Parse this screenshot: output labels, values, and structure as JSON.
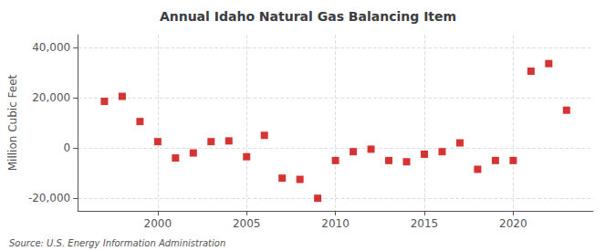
{
  "chart_data": {
    "type": "scatter",
    "title": "Annual Idaho Natural Gas Balancing Item",
    "ylabel": "Million Cubic Feet",
    "annotations": [
      "Source: U.S. Energy Information Administration"
    ],
    "x": [
      1997,
      1998,
      1999,
      2000,
      2001,
      2002,
      2003,
      2004,
      2005,
      2006,
      2007,
      2008,
      2009,
      2010,
      2011,
      2012,
      2013,
      2014,
      2015,
      2016,
      2017,
      2018,
      2019,
      2020,
      2021,
      2022,
      2023
    ],
    "values": [
      18500,
      20500,
      10500,
      2500,
      -4000,
      -2000,
      2500,
      2800,
      -3500,
      5000,
      -12000,
      -12500,
      -20000,
      -5000,
      -1500,
      -500,
      -5000,
      -5500,
      -2500,
      -1500,
      2000,
      -8500,
      -5000,
      -5000,
      30500,
      33500,
      15000
    ],
    "color": "#cc0000",
    "marker": "square",
    "xlim": [
      1995.5,
      2024.5
    ],
    "xticks": [
      2000,
      2005,
      2010,
      2015,
      2020
    ],
    "ylim": [
      -25000,
      45000
    ],
    "yticks": [
      {
        "value": -20000,
        "label": "-20,000"
      },
      0,
      {
        "value": 20000,
        "label": "20,000"
      },
      {
        "value": 40000,
        "label": "40,000"
      }
    ],
    "grid": true
  }
}
